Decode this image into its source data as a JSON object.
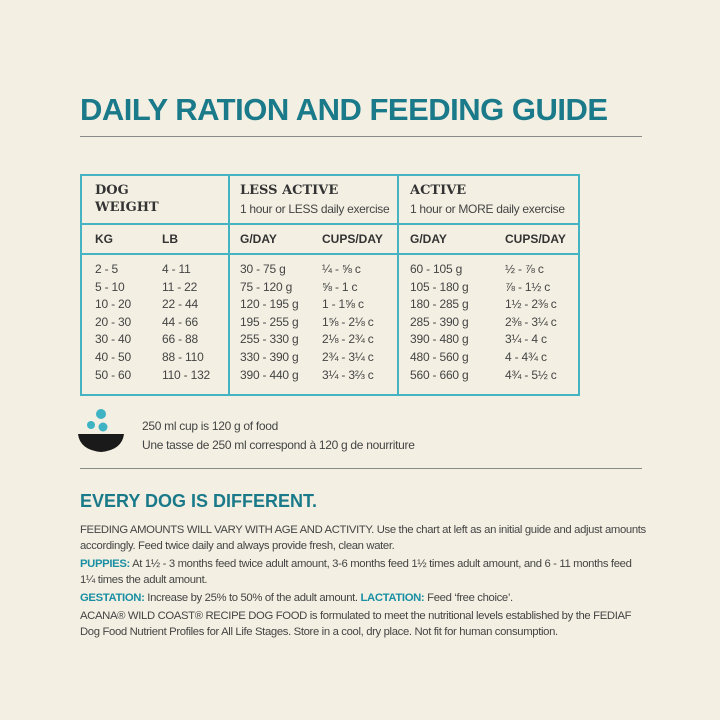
{
  "title": "DAILY RATION AND FEEDING GUIDE",
  "table": {
    "groups": [
      {
        "title": "DOG WEIGHT"
      },
      {
        "title": "LESS ACTIVE",
        "subtitle": "1 hour or LESS daily exercise"
      },
      {
        "title": "ACTIVE",
        "subtitle": "1 hour or MORE daily exercise"
      }
    ],
    "columns": [
      "KG",
      "LB",
      "G/DAY",
      "CUPS/DAY",
      "G/DAY",
      "CUPS/DAY"
    ],
    "rows": [
      [
        "2 - 5",
        "4 - 11",
        "30 - 75 g",
        "¼ - ⅝ c",
        "60 - 105 g",
        "½ - ⅞ c"
      ],
      [
        "5 - 10",
        "11 - 22",
        "75 - 120 g",
        "⅝ - 1 c",
        "105 - 180 g",
        "⅞ - 1½ c"
      ],
      [
        "10 - 20",
        "22 - 44",
        "120 - 195 g",
        "1 - 1⅝ c",
        "180 - 285 g",
        "1½ - 2⅜ c"
      ],
      [
        "20 - 30",
        "44 - 66",
        "195 - 255 g",
        "1⅝ - 2⅛ c",
        "285 - 390 g",
        "2⅜ - 3¼ c"
      ],
      [
        "30 - 40",
        "66 - 88",
        "255 - 330 g",
        "2⅛ - 2¾ c",
        "390 - 480 g",
        "3¼ - 4 c"
      ],
      [
        "40 - 50",
        "88 - 110",
        "330 - 390 g",
        "2¾ - 3¼ c",
        "480 - 560 g",
        "4 - 4¾ c"
      ],
      [
        "50 - 60",
        "110 - 132",
        "390 - 440 g",
        "3¼ - 3⅔ c",
        "560 - 660 g",
        "4¾ - 5½ c"
      ]
    ]
  },
  "cup_note": [
    "250 ml cup is 120 g of food",
    "Une tasse de 250 ml correspond à 120 g de nourriture"
  ],
  "section_title": "EVERY DOG IS DIFFERENT.",
  "intro": "FEEDING AMOUNTS WILL VARY WITH AGE AND ACTIVITY.  Use the chart at left as an initial guide and adjust amounts accordingly. Feed twice daily and always provide fresh, clean water.",
  "puppies": {
    "label": "PUPPIES:",
    "text": "At 1½ - 3 months feed twice adult amount, 3-6 months feed 1½ times adult amount, and 6 - 11 months feed 1¼ times the adult amount."
  },
  "gestation": {
    "label": "GESTATION:",
    "text": "Increase by 25% to 50% of the adult amount."
  },
  "lactation": {
    "label": "LACTATION:",
    "text": "Feed ‘free choice’."
  },
  "footer": "ACANA® WILD COAST® RECIPE DOG FOOD is formulated to meet the nutritional levels established by the FEDIAF Dog Food Nutrient Profiles for All Life Stages. Store in a cool, dry place. Not fit for human consumption."
}
